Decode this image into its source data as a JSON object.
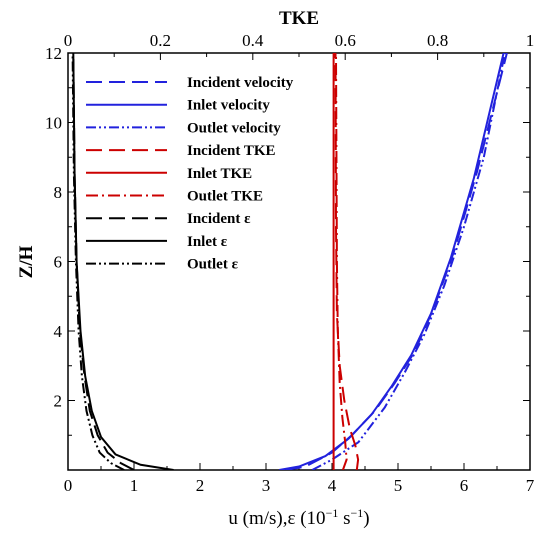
{
  "chart_data": {
    "type": "line",
    "top_axis_title": "TKE",
    "ylabel": "Z/H",
    "bottom_axis_title": "u (m/s),ε (10",
    "bottom_axis_exp": "−1",
    "bottom_axis_unit": " s",
    "bottom_axis_unit_exp": "−1",
    "bottom_axis_close": ")",
    "xlim": [
      0,
      7
    ],
    "x2lim": [
      0,
      1
    ],
    "ylim": [
      0,
      12
    ],
    "xticks": [
      "0",
      "1",
      "2",
      "3",
      "4",
      "5",
      "6",
      "7"
    ],
    "x2ticks": [
      "0",
      "0.2",
      "0.4",
      "0.6",
      "0.8",
      "1"
    ],
    "yticks": [
      "2",
      "4",
      "6",
      "8",
      "10",
      "12"
    ],
    "legend_placement": "top-left",
    "colors": {
      "velocity": "#2222dd",
      "tke": "#cc0000",
      "epsilon": "#000000"
    },
    "series": [
      {
        "name": "Incident velocity",
        "axis": "bottom",
        "color": "#2222dd",
        "dash": "long-dash",
        "points": [
          [
            3.3,
            0
          ],
          [
            3.6,
            0.1
          ],
          [
            4.0,
            0.5
          ],
          [
            4.3,
            1.0
          ],
          [
            4.65,
            1.7
          ],
          [
            4.95,
            2.5
          ],
          [
            5.25,
            3.4
          ],
          [
            5.55,
            4.7
          ],
          [
            5.85,
            6.3
          ],
          [
            6.2,
            8.6
          ],
          [
            6.65,
            12
          ]
        ]
      },
      {
        "name": "Inlet velocity",
        "axis": "bottom",
        "color": "#2222dd",
        "dash": "solid",
        "points": [
          [
            3.2,
            0
          ],
          [
            3.5,
            0.1
          ],
          [
            3.9,
            0.4
          ],
          [
            4.25,
            0.9
          ],
          [
            4.6,
            1.6
          ],
          [
            4.9,
            2.4
          ],
          [
            5.2,
            3.3
          ],
          [
            5.5,
            4.5
          ],
          [
            5.8,
            6.1
          ],
          [
            6.15,
            8.4
          ],
          [
            6.6,
            12
          ]
        ]
      },
      {
        "name": "Outlet velocity",
        "axis": "bottom",
        "color": "#2222dd",
        "dash": "dash-dot-dot",
        "points": [
          [
            3.7,
            0
          ],
          [
            4.0,
            0.3
          ],
          [
            4.4,
            0.8
          ],
          [
            4.8,
            1.8
          ],
          [
            5.1,
            2.8
          ],
          [
            5.4,
            3.9
          ],
          [
            5.7,
            5.3
          ],
          [
            6.0,
            7.0
          ],
          [
            6.3,
            9.0
          ],
          [
            6.62,
            12
          ]
        ]
      },
      {
        "name": "Incident TKE",
        "axis": "top",
        "color": "#cc0000",
        "dash": "long-dash",
        "points": [
          [
            0.625,
            0
          ],
          [
            0.628,
            0.3
          ],
          [
            0.622,
            0.7
          ],
          [
            0.61,
            1.2
          ],
          [
            0.598,
            2.0
          ],
          [
            0.588,
            3.0
          ],
          [
            0.582,
            4.5
          ],
          [
            0.58,
            7.0
          ],
          [
            0.579,
            12
          ]
        ]
      },
      {
        "name": "Inlet TKE",
        "axis": "top",
        "color": "#cc0000",
        "dash": "solid",
        "points": [
          [
            0.575,
            0
          ],
          [
            0.575,
            12
          ]
        ]
      },
      {
        "name": "Outlet TKE",
        "axis": "top",
        "color": "#cc0000",
        "dash": "dash-dot",
        "points": [
          [
            0.595,
            0
          ],
          [
            0.603,
            0.3
          ],
          [
            0.6,
            0.8
          ],
          [
            0.594,
            1.5
          ],
          [
            0.588,
            2.5
          ],
          [
            0.584,
            4.0
          ],
          [
            0.582,
            6.0
          ],
          [
            0.58,
            12
          ]
        ]
      },
      {
        "name": "Incident ε",
        "axis": "bottom",
        "color": "#000000",
        "dash": "long-dash",
        "points": [
          [
            1.0,
            0
          ],
          [
            0.8,
            0.2
          ],
          [
            0.6,
            0.5
          ],
          [
            0.45,
            1.0
          ],
          [
            0.33,
            1.7
          ],
          [
            0.25,
            2.7
          ],
          [
            0.18,
            4.0
          ],
          [
            0.13,
            6.0
          ],
          [
            0.1,
            8.5
          ],
          [
            0.08,
            12
          ]
        ]
      },
      {
        "name": "Inlet ε",
        "axis": "bottom",
        "color": "#000000",
        "dash": "solid",
        "points": [
          [
            1.6,
            0
          ],
          [
            1.1,
            0.15
          ],
          [
            0.72,
            0.45
          ],
          [
            0.5,
            0.95
          ],
          [
            0.36,
            1.7
          ],
          [
            0.26,
            2.7
          ],
          [
            0.19,
            4.0
          ],
          [
            0.13,
            6.0
          ],
          [
            0.1,
            8.5
          ],
          [
            0.08,
            12
          ]
        ]
      },
      {
        "name": "Outlet ε",
        "axis": "bottom",
        "color": "#000000",
        "dash": "dash-dot-dot",
        "points": [
          [
            0.85,
            0
          ],
          [
            0.65,
            0.2
          ],
          [
            0.48,
            0.5
          ],
          [
            0.37,
            1.0
          ],
          [
            0.28,
            1.7
          ],
          [
            0.21,
            2.7
          ],
          [
            0.16,
            4.0
          ],
          [
            0.12,
            6.0
          ],
          [
            0.09,
            8.5
          ],
          [
            0.07,
            12
          ]
        ]
      }
    ]
  }
}
